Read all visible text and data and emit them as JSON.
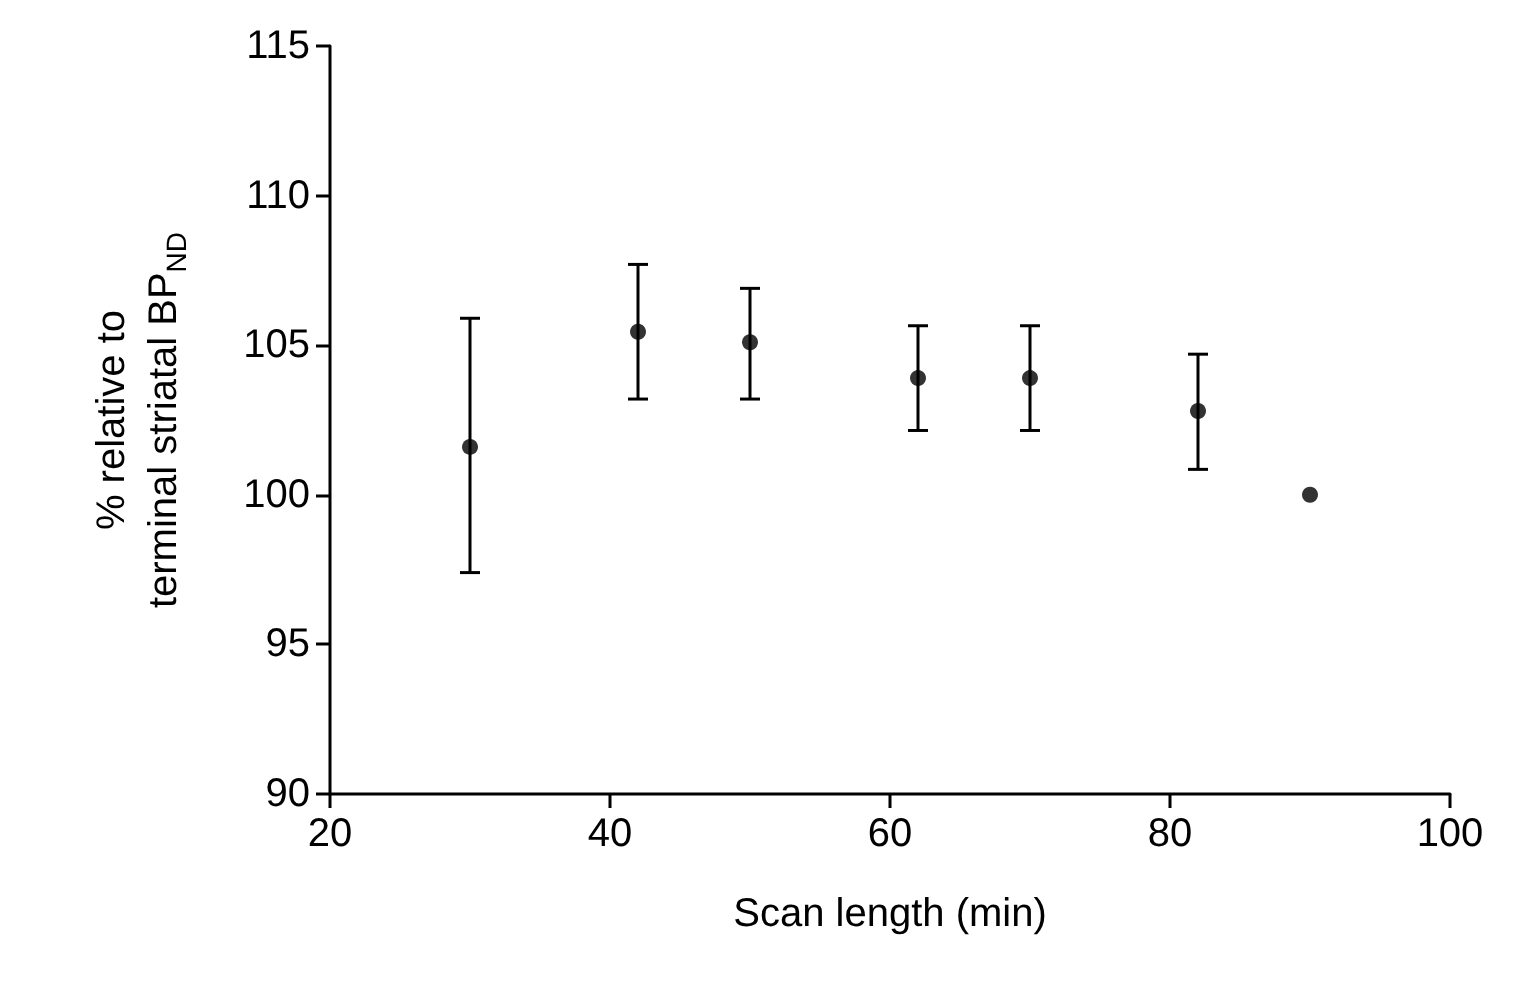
{
  "chart_data": {
    "type": "scatter",
    "xlabel": "Scan length (min)",
    "ylabel": "% relative to\nterminal striatal BP$_{ND}$",
    "x": [
      30,
      42,
      50,
      62,
      70,
      82,
      90
    ],
    "values": [
      101.6,
      105.45,
      105.1,
      103.9,
      103.9,
      102.8,
      100
    ],
    "errors": [
      [
        97.4,
        105.9
      ],
      [
        103.2,
        107.7
      ],
      [
        103.2,
        106.9
      ],
      [
        102.15,
        105.65
      ],
      [
        102.15,
        105.65
      ],
      [
        100.85,
        104.7
      ],
      null
    ],
    "color": "#000000",
    "marker": "circle",
    "xlim": [
      20,
      100
    ],
    "xticks": [
      20,
      40,
      60,
      80,
      100
    ],
    "ylim": [
      90,
      115
    ],
    "yticks": [
      90,
      95,
      100,
      105,
      110,
      115
    ]
  }
}
